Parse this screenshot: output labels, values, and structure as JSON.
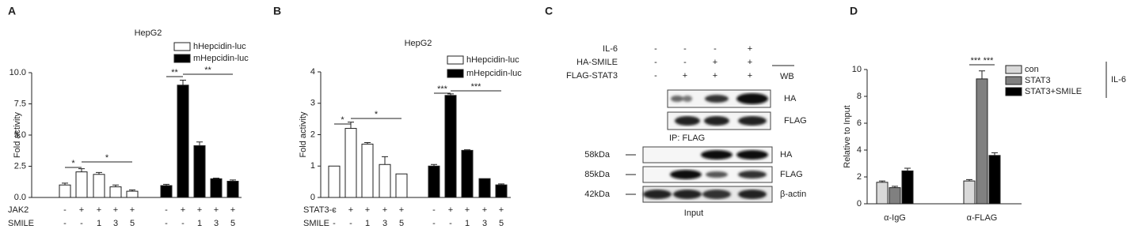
{
  "chart_data": [
    {
      "type": "bar",
      "panel": "A",
      "title": "HepG2",
      "ylabel": "Fold activity",
      "ylim": [
        0,
        10
      ],
      "yticks": [
        {
          "value": 0,
          "label": "0.0"
        },
        2.5,
        {
          "value": 5,
          "label": "5.0"
        },
        7.5,
        {
          "value": 10,
          "label": "10.0"
        }
      ],
      "series": [
        {
          "name": "hHepcidin-luc",
          "color": "#ffffff",
          "values": [
            1.0,
            2.05,
            1.85,
            0.85,
            0.5,
            null,
            null,
            null,
            null,
            null
          ],
          "errors": [
            0.15,
            0.25,
            0.15,
            0.15,
            0.1,
            null,
            null,
            null,
            null,
            null
          ]
        },
        {
          "name": "mHepcidin-luc",
          "color": "#000000",
          "values": [
            null,
            null,
            null,
            null,
            null,
            0.95,
            9.0,
            4.15,
            1.5,
            1.3
          ],
          "errors": [
            null,
            null,
            null,
            null,
            null,
            0.1,
            0.4,
            0.3,
            0.05,
            0.1
          ]
        }
      ],
      "condition_rows": [
        {
          "name": "JAK2",
          "labels": [
            "-",
            "+",
            "+",
            "+",
            "+",
            "-",
            "+",
            "+",
            "+",
            "+"
          ]
        },
        {
          "name": "SMILE",
          "labels": [
            "-",
            "-",
            "1",
            "3",
            "5",
            "-",
            "-",
            "1",
            "3",
            "5"
          ]
        }
      ],
      "annotations": [
        "*",
        "*",
        "**",
        "**"
      ]
    },
    {
      "type": "bar",
      "panel": "B",
      "title": "HepG2",
      "ylabel": "Fold activity",
      "ylim": [
        0,
        4
      ],
      "yticks": [
        0,
        1,
        2,
        3,
        4
      ],
      "series": [
        {
          "name": "hHepcidin-luc",
          "color": "#ffffff",
          "values": [
            1.0,
            2.2,
            1.7,
            1.05,
            0.75,
            null,
            null,
            null,
            null,
            null
          ],
          "errors": [
            null,
            0.2,
            0.05,
            0.25,
            null,
            null,
            null,
            null,
            null,
            null
          ]
        },
        {
          "name": "mHepcidin-luc",
          "color": "#000000",
          "values": [
            null,
            null,
            null,
            null,
            null,
            1.0,
            3.25,
            1.5,
            0.6,
            0.4
          ],
          "errors": [
            null,
            null,
            null,
            null,
            null,
            0.05,
            0.05,
            0.02,
            null,
            0.03
          ]
        }
      ],
      "condition_rows": [
        {
          "name": "STAT3-c",
          "labels": [
            "-",
            "+",
            "+",
            "+",
            "+",
            "-",
            "+",
            "+",
            "+",
            "+"
          ]
        },
        {
          "name": "SMILE",
          "labels": [
            "-",
            "-",
            "1",
            "3",
            "5",
            "-",
            "-",
            "1",
            "3",
            "5"
          ]
        }
      ],
      "annotations": [
        "*",
        "*",
        "***",
        "***"
      ]
    },
    {
      "type": "bar",
      "panel": "D",
      "ylabel": "Relative to Input",
      "ylim": [
        0,
        10
      ],
      "yticks": [
        0,
        2,
        4,
        6,
        8,
        10
      ],
      "categories": [
        "α-IgG",
        "α-FLAG"
      ],
      "series": [
        {
          "name": "con",
          "color": "#d9d9d9",
          "values": [
            1.6,
            1.7
          ],
          "errors": [
            0.1,
            0.1
          ]
        },
        {
          "name": "STAT3",
          "color": "#808080",
          "values": [
            1.2,
            9.3
          ],
          "errors": [
            0.1,
            0.6
          ]
        },
        {
          "name": "STAT3+SMILE",
          "color": "#000000",
          "values": [
            2.45,
            3.6
          ],
          "errors": [
            0.2,
            0.2
          ]
        }
      ],
      "group_label": "IL-6",
      "annotations": [
        "***",
        "***"
      ]
    }
  ],
  "blot": {
    "panel": "C",
    "conditions": [
      {
        "name": "IL-6",
        "labels": [
          "-",
          "-",
          "-",
          "+"
        ]
      },
      {
        "name": "HA-SMILE",
        "labels": [
          "-",
          "-",
          "+",
          "+"
        ]
      },
      {
        "name": "FLAG-STAT3",
        "labels": [
          "-",
          "+",
          "+",
          "+"
        ]
      }
    ],
    "wb": "WB",
    "ip_rows": [
      "HA",
      "FLAG"
    ],
    "ip_label": "IP: FLAG",
    "input_rows": [
      {
        "size": "58kDa",
        "name": "HA"
      },
      {
        "size": "85kDa",
        "name": "FLAG"
      },
      {
        "size": "42kDa",
        "name": "β-actin"
      }
    ],
    "input_label": "Input"
  }
}
